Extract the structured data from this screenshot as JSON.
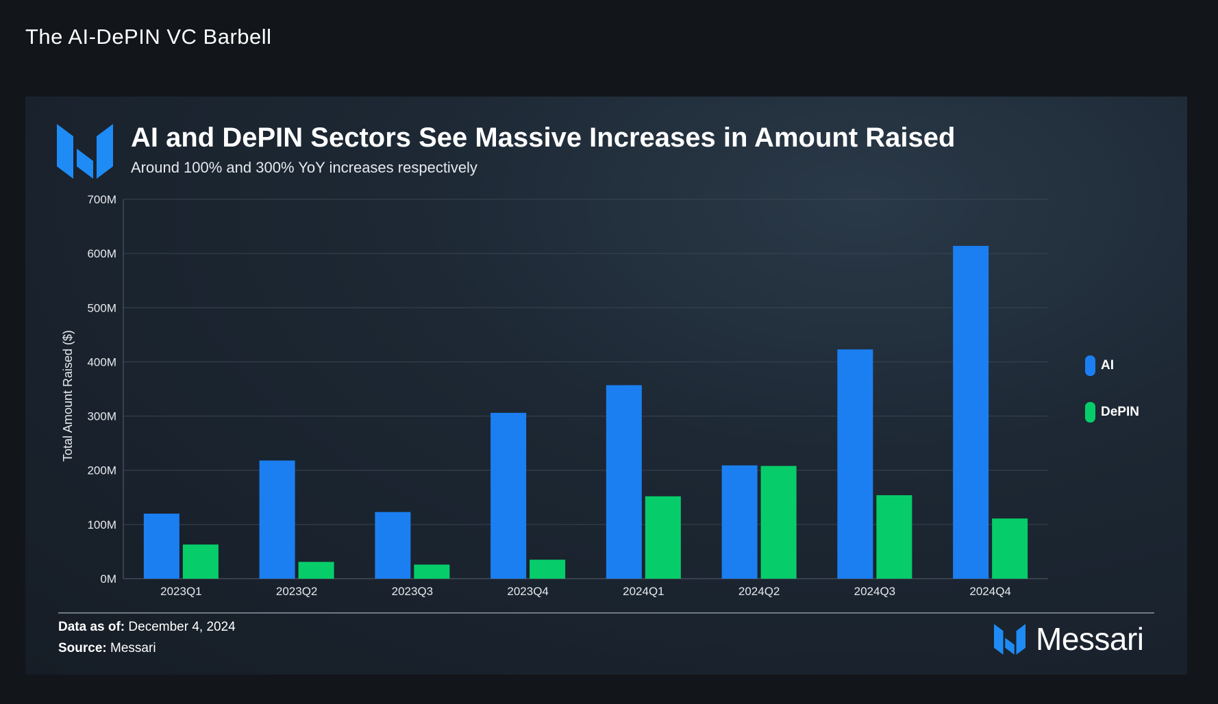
{
  "page": {
    "title": "The AI-DePIN VC Barbell"
  },
  "colors": {
    "background": "#12151a",
    "ai": "#1b7ff2",
    "depin": "#06cd6a",
    "logo_blue": "#1f8bf5"
  },
  "footer": {
    "data_as_of_label": "Data as of:",
    "data_as_of_value": "December 4, 2024",
    "source_label": "Source:",
    "source_value": "Messari"
  },
  "brand": {
    "name": "Messari",
    "icon": "messari-logo-icon"
  },
  "chart_data": {
    "type": "bar",
    "title": "AI and DePIN Sectors See Massive Increases in Amount Raised",
    "subtitle": "Around 100% and 300% YoY increases respectively",
    "xlabel": "",
    "ylabel": "Total Amount Raised ($)",
    "ylim": [
      0,
      700
    ],
    "yticks": [
      0,
      100,
      200,
      300,
      400,
      500,
      600,
      700
    ],
    "ytick_labels": [
      "0M",
      "100M",
      "200M",
      "300M",
      "400M",
      "500M",
      "600M",
      "700M"
    ],
    "grid": true,
    "legend_position": "right",
    "categories": [
      "2023Q1",
      "2023Q2",
      "2023Q3",
      "2023Q4",
      "2024Q1",
      "2024Q2",
      "2024Q3",
      "2024Q4"
    ],
    "series": [
      {
        "name": "AI",
        "color": "#1b7ff2",
        "values": [
          120,
          218,
          123,
          306,
          357,
          209,
          423,
          614
        ]
      },
      {
        "name": "DePIN",
        "color": "#06cd6a",
        "values": [
          63,
          31,
          26,
          35,
          152,
          208,
          154,
          111
        ]
      }
    ]
  }
}
